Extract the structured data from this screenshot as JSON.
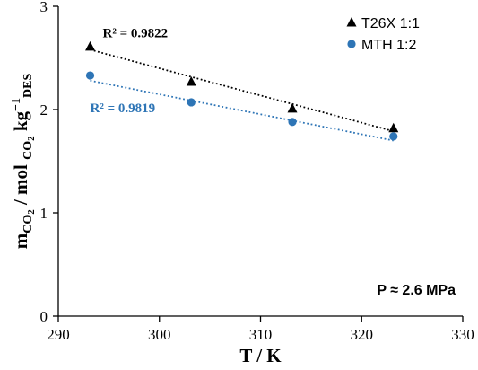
{
  "chart_data": {
    "type": "scatter",
    "xlabel": "T / K",
    "ylabel": {
      "base": "m",
      "base_sub": "CO",
      "base_sub2": "2",
      "mid": " / mol ",
      "mid_sub": "CO",
      "mid_sub2": "2",
      "end": " kg",
      "end_sup": "−1",
      "end_sub": "DES"
    },
    "xlim": [
      290,
      330
    ],
    "ylim": [
      0,
      3
    ],
    "xticks": [
      "290",
      "300",
      "310",
      "320",
      "330"
    ],
    "yticks": [
      "0",
      "1",
      "2",
      "3"
    ],
    "grid": false,
    "legend_position": "top-right",
    "series": [
      {
        "name": "T26X 1:1",
        "marker": "triangle",
        "color": "#000000",
        "x": [
          293.15,
          303.15,
          313.15,
          323.15
        ],
        "y": [
          2.61,
          2.27,
          2.01,
          1.82
        ],
        "trendline": {
          "x": [
            293.15,
            323.15
          ],
          "y": [
            2.58,
            1.79
          ]
        },
        "r2_label": "R² = 0.9822"
      },
      {
        "name": "MTH 1:2",
        "marker": "circle",
        "color": "#2E75B6",
        "x": [
          293.15,
          303.15,
          313.15,
          323.15
        ],
        "y": [
          2.33,
          2.07,
          1.88,
          1.74
        ],
        "trendline": {
          "x": [
            293.15,
            323.15
          ],
          "y": [
            2.28,
            1.7
          ]
        },
        "r2_label": "R² = 0.9819"
      }
    ],
    "annotations": [
      "P ≈ 2.6 MPa"
    ]
  }
}
